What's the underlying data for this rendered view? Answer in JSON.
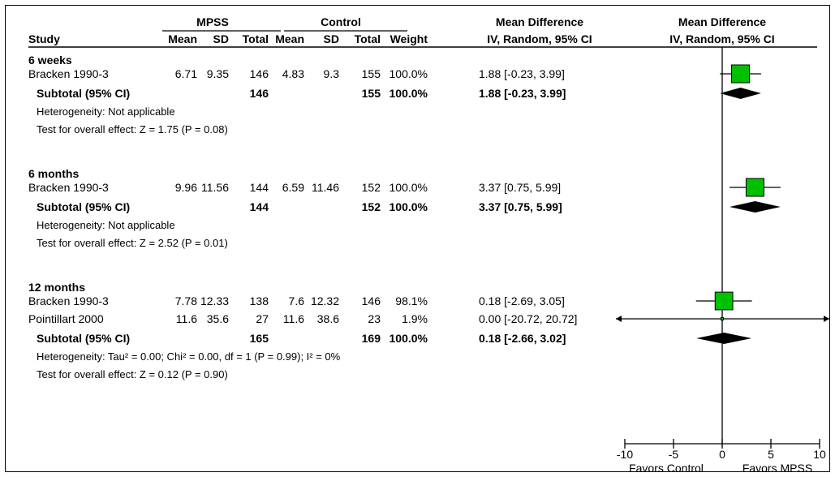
{
  "chart_data": {
    "type": "forest",
    "headers": {
      "study": "Study",
      "group1": "MPSS",
      "group2": "Control",
      "mean": "Mean",
      "sd": "SD",
      "total": "Total",
      "weight": "Weight",
      "md_line1": "Mean Difference",
      "md_line2": "IV, Random, 95% CI",
      "plot_line1": "Mean Difference",
      "plot_line2": "IV, Random, 95% CI"
    },
    "x_axis": {
      "range": [
        -10,
        10
      ],
      "ticks": [
        -10,
        -5,
        0,
        5,
        10
      ],
      "tick_labels": [
        "-10",
        "-5",
        "0",
        "5",
        "10"
      ],
      "label_left": "Favors Control",
      "label_right": "Favors MPSS"
    },
    "groups": [
      {
        "title": "6 weeks",
        "studies": [
          {
            "name": "Bracken 1990-3",
            "m1": "6.71",
            "sd1": "9.35",
            "n1": "146",
            "m2": "4.83",
            "sd2": "9.3",
            "n2": "155",
            "weight": "100.0%",
            "ci_text": "1.88 [-0.23, 3.99]",
            "md": 1.88,
            "lo": -0.23,
            "hi": 3.99,
            "w": 100.0
          }
        ],
        "subtotal": {
          "label": "Subtotal (95% CI)",
          "n1": "146",
          "n2": "155",
          "weight": "100.0%",
          "ci_text": "1.88 [-0.23, 3.99]",
          "md": 1.88,
          "lo": -0.23,
          "hi": 3.99
        },
        "heterogeneity": "Heterogeneity: Not applicable",
        "overall": "Test for overall effect: Z = 1.75 (P = 0.08)"
      },
      {
        "title": "6 months",
        "studies": [
          {
            "name": "Bracken 1990-3",
            "m1": "9.96",
            "sd1": "11.56",
            "n1": "144",
            "m2": "6.59",
            "sd2": "11.46",
            "n2": "152",
            "weight": "100.0%",
            "ci_text": "3.37 [0.75, 5.99]",
            "md": 3.37,
            "lo": 0.75,
            "hi": 5.99,
            "w": 100.0
          }
        ],
        "subtotal": {
          "label": "Subtotal (95% CI)",
          "n1": "144",
          "n2": "152",
          "weight": "100.0%",
          "ci_text": "3.37 [0.75, 5.99]",
          "md": 3.37,
          "lo": 0.75,
          "hi": 5.99
        },
        "heterogeneity": "Heterogeneity: Not applicable",
        "overall": "Test for overall effect: Z = 2.52 (P = 0.01)"
      },
      {
        "title": "12 months",
        "studies": [
          {
            "name": "Bracken 1990-3",
            "m1": "7.78",
            "sd1": "12.33",
            "n1": "138",
            "m2": "7.6",
            "sd2": "12.32",
            "n2": "146",
            "weight": "98.1%",
            "ci_text": "0.18 [-2.69, 3.05]",
            "md": 0.18,
            "lo": -2.69,
            "hi": 3.05,
            "w": 98.1
          },
          {
            "name": "Pointillart 2000",
            "m1": "11.6",
            "sd1": "35.6",
            "n1": "27",
            "m2": "11.6",
            "sd2": "38.6",
            "n2": "23",
            "weight": "1.9%",
            "ci_text": "0.00 [-20.72, 20.72]",
            "md": 0.0,
            "lo": -20.72,
            "hi": 20.72,
            "w": 1.9
          }
        ],
        "subtotal": {
          "label": "Subtotal (95% CI)",
          "n1": "165",
          "n2": "169",
          "weight": "100.0%",
          "ci_text": "0.18 [-2.66, 3.02]",
          "md": 0.18,
          "lo": -2.66,
          "hi": 3.02
        },
        "heterogeneity": "Heterogeneity: Tau² = 0.00; Chi² = 0.00, df = 1 (P = 0.99); I² = 0%",
        "overall": "Test for overall effect: Z = 0.12 (P = 0.90)"
      }
    ],
    "colors": {
      "marker": "#00c000",
      "diamond": "#000000",
      "line": "#000000"
    }
  }
}
